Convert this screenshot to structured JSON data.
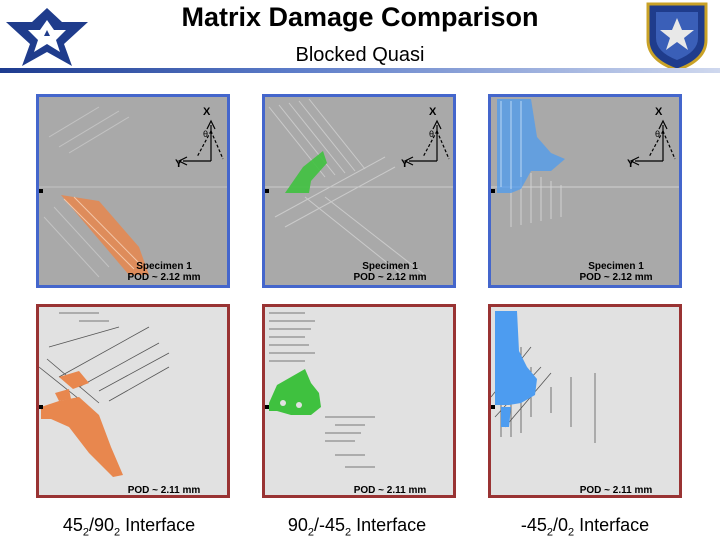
{
  "header": {
    "title": "Matrix Damage Comparison",
    "subtitle": "Blocked Quasi"
  },
  "panels": {
    "specimen_label": "Specimen 1",
    "top_pod": "POD ~ 2.12 mm",
    "bottom_pod": "POD ~ 2.11 mm",
    "axis_x": "X",
    "axis_y": "Y",
    "axis_theta": "θ"
  },
  "interfaces": [
    {
      "a": "45",
      "as": "2",
      "sep": "/",
      "b": "90",
      "bs": "2",
      "suffix": " Interface",
      "color": "#e8874e"
    },
    {
      "a": "90",
      "as": "2",
      "sep": "/-",
      "b": "45",
      "bs": "2",
      "suffix": " Interface",
      "color": "#3fc13f"
    },
    {
      "a": "-45",
      "as": "2",
      "sep": "/",
      "b": "0",
      "bs": "2",
      "suffix": " Interface",
      "color": "#4d9cf0"
    }
  ]
}
